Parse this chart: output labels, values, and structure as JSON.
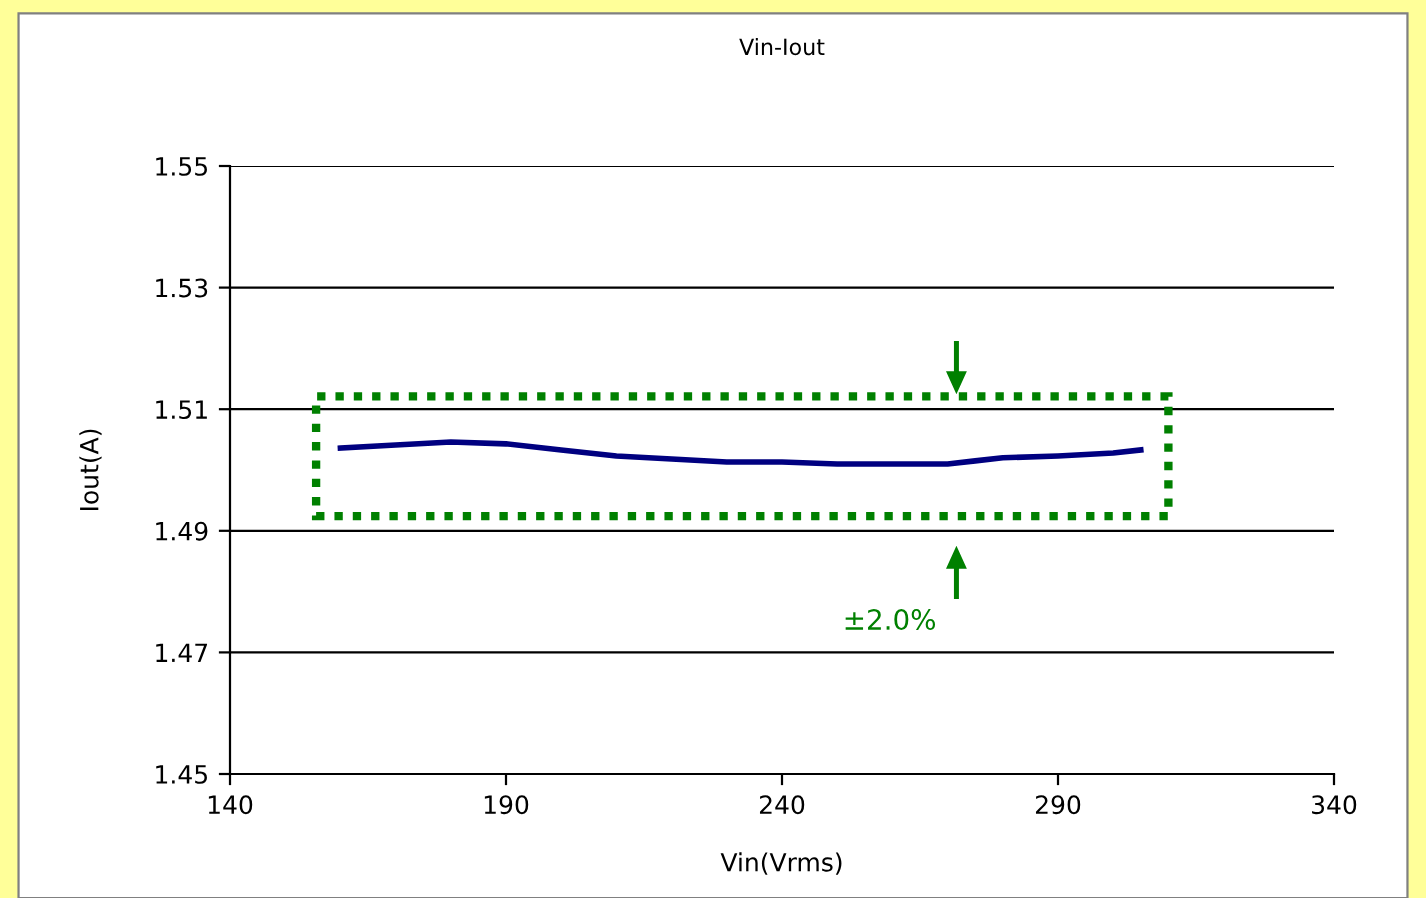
{
  "chart_data": {
    "type": "line",
    "title": "Vin-Iout",
    "xlabel": "Vin(Vrms)",
    "ylabel": "Iout(A)",
    "x": [
      160,
      170,
      180,
      190,
      200,
      210,
      220,
      230,
      240,
      250,
      260,
      270,
      275,
      280,
      290,
      300,
      305
    ],
    "series": [
      {
        "color": "#000080",
        "values": [
          1.5036,
          1.5041,
          1.5046,
          1.5043,
          1.5033,
          1.5023,
          1.5018,
          1.5013,
          1.5013,
          1.501,
          1.501,
          1.501,
          1.5015,
          1.502,
          1.5023,
          1.5028,
          1.5033
        ]
      }
    ],
    "xlim": [
      140,
      340
    ],
    "xticks": [
      140,
      190,
      240,
      290,
      340
    ],
    "ylim": [
      1.45,
      1.55
    ],
    "yticks": [
      {
        "value": 1.45,
        "label": "1.45"
      },
      {
        "value": 1.47,
        "label": "1.47"
      },
      {
        "value": 1.49,
        "label": "1.49"
      },
      {
        "value": 1.51,
        "label": "1.51"
      },
      {
        "value": 1.53,
        "label": "1.53"
      },
      {
        "value": 1.55,
        "label": "1.55"
      }
    ],
    "grid": "y",
    "marker": "none",
    "line_style": "solid",
    "annotations": [
      "±2.0%"
    ]
  }
}
